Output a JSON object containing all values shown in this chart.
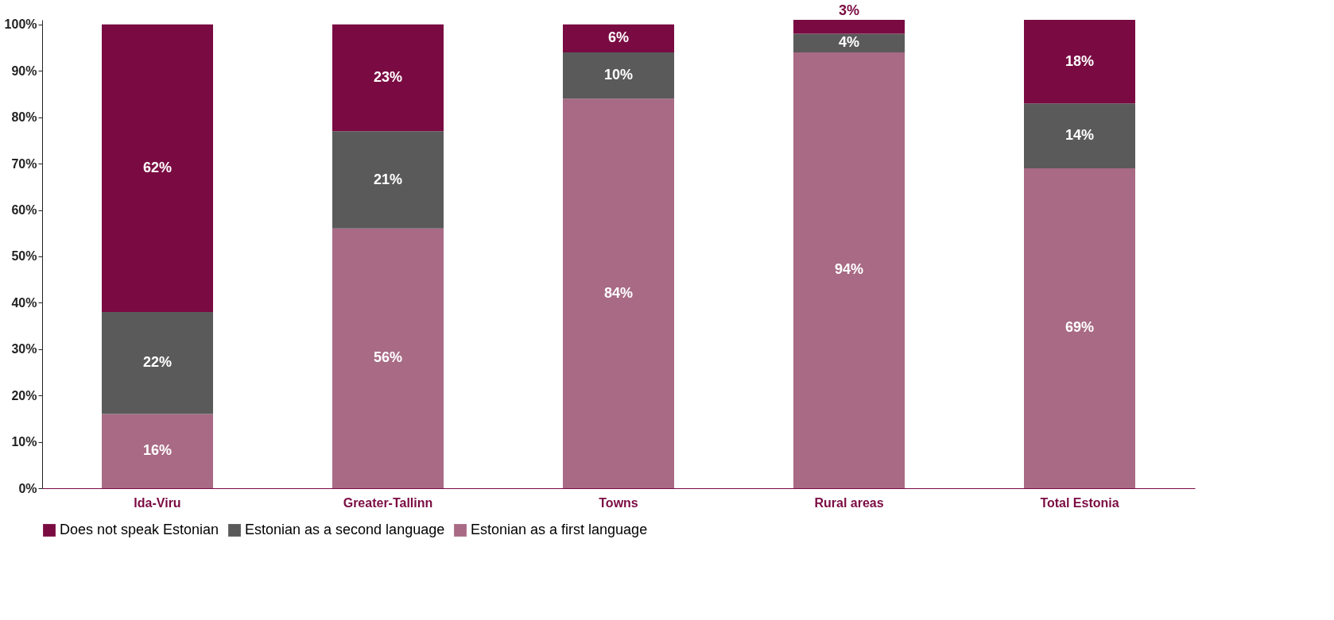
{
  "chart_data": {
    "type": "bar",
    "stacked": true,
    "categories": [
      "Ida-Viru",
      "Greater-Tallinn",
      "Towns",
      "Rural areas",
      "Total Estonia"
    ],
    "series": [
      {
        "name": "Estonian as a first language",
        "color": "#a86a84",
        "values": [
          16,
          56,
          84,
          94,
          69
        ],
        "value_labels": [
          "16%",
          "56%",
          "84%",
          "94%",
          "69%"
        ]
      },
      {
        "name": "Estonian as a second language",
        "color": "#5a5a5a",
        "values": [
          22,
          21,
          10,
          4,
          14
        ],
        "value_labels": [
          "22%",
          "21%",
          "10%",
          "4%",
          "14%"
        ]
      },
      {
        "name": "Does not speak Estonian",
        "color": "#7a0b42",
        "values": [
          62,
          23,
          6,
          3,
          18
        ],
        "value_labels": [
          "62%",
          "23%",
          "6%",
          "3%",
          "18%"
        ]
      }
    ],
    "ylim": [
      0,
      101
    ],
    "yticks": [
      {
        "value": 0,
        "label": "0%"
      },
      {
        "value": 10,
        "label": "10%"
      },
      {
        "value": 20,
        "label": "20%"
      },
      {
        "value": 30,
        "label": "30%"
      },
      {
        "value": 40,
        "label": "40%"
      },
      {
        "value": 50,
        "label": "50%"
      },
      {
        "value": 60,
        "label": "60%"
      },
      {
        "value": 70,
        "label": "70%"
      },
      {
        "value": 80,
        "label": "80%"
      },
      {
        "value": 90,
        "label": "90%"
      },
      {
        "value": 100,
        "label": "100%"
      }
    ],
    "legend": "bottom"
  }
}
